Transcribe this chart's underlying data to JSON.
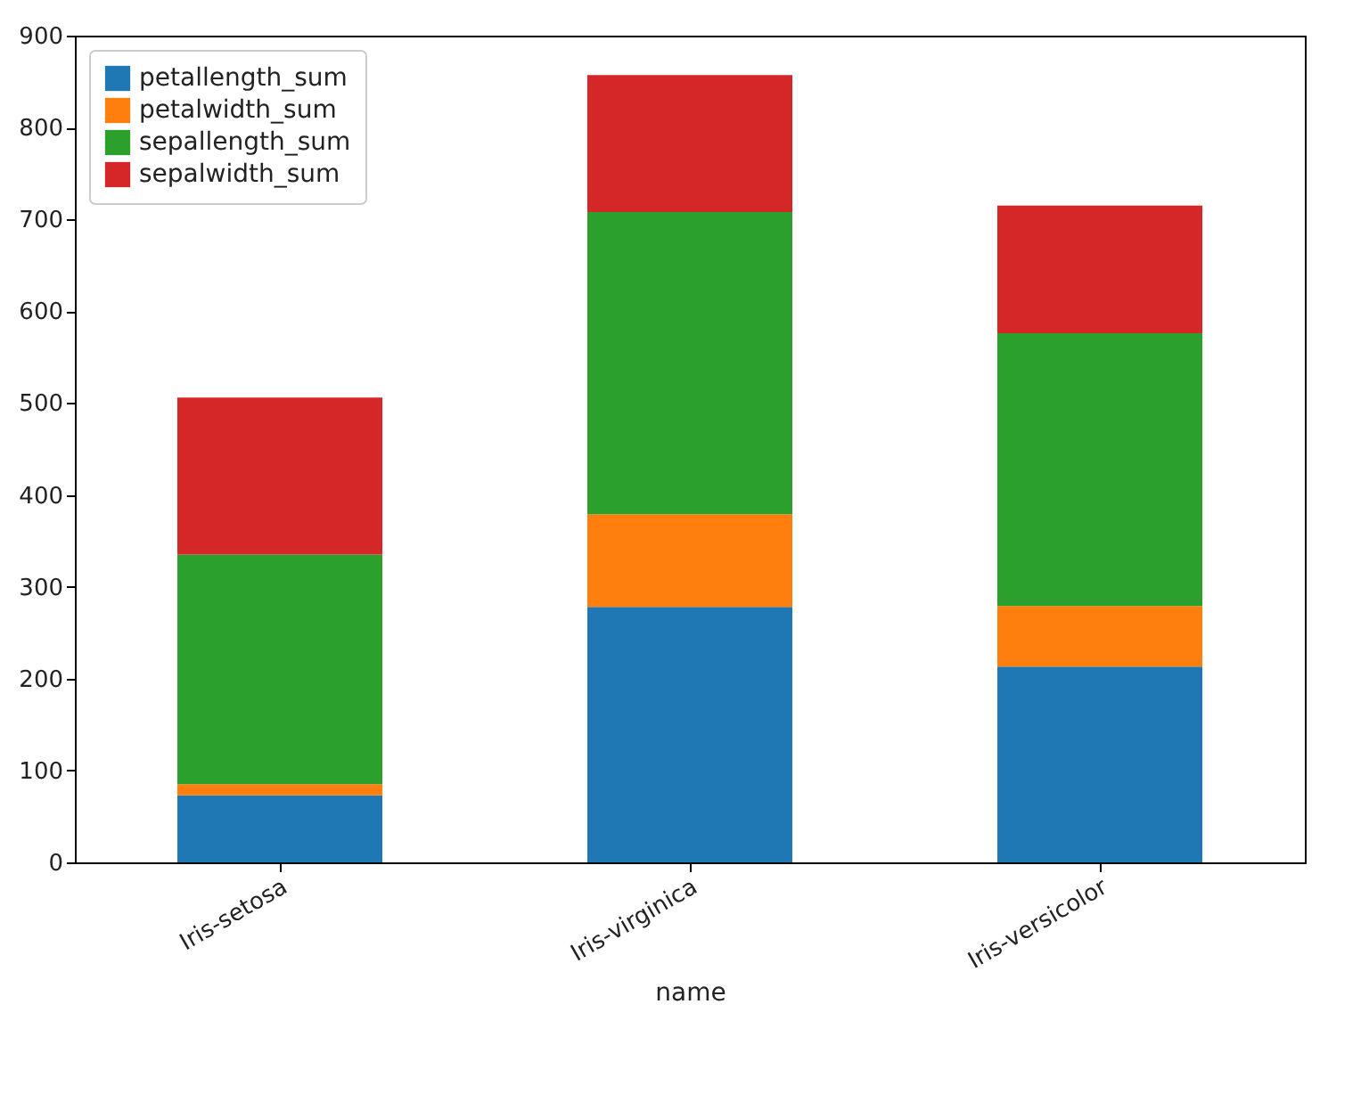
{
  "chart_data": {
    "type": "bar",
    "stacked": true,
    "xlabel": "name",
    "categories": [
      "Iris-setosa",
      "Iris-virginica",
      "Iris-versicolor"
    ],
    "series": [
      {
        "name": "petallength_sum",
        "color": "#1f77b4",
        "values": [
          73,
          278,
          213
        ]
      },
      {
        "name": "petalwidth_sum",
        "color": "#ff7f0e",
        "values": [
          12,
          101,
          66
        ]
      },
      {
        "name": "sepallength_sum",
        "color": "#2ca02c",
        "values": [
          250,
          329,
          297
        ]
      },
      {
        "name": "sepalwidth_sum",
        "color": "#d62728",
        "values": [
          171,
          149,
          139
        ]
      }
    ],
    "ylim": [
      0,
      900
    ],
    "yticks": [
      0,
      100,
      200,
      300,
      400,
      500,
      600,
      700,
      800,
      900
    ],
    "grid": false,
    "legend": "top left"
  }
}
